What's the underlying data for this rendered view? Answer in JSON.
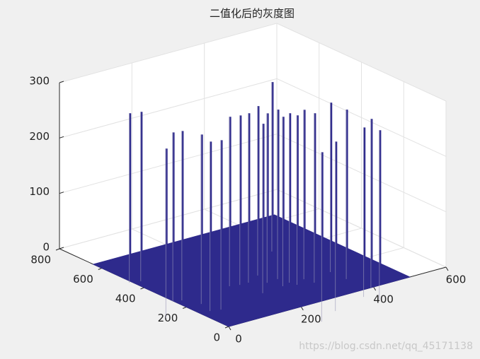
{
  "chart_data": {
    "type": "mesh3d",
    "title": "二值化后的灰度图",
    "xlim": [
      0,
      600
    ],
    "xticks": [
      0,
      200,
      400,
      600
    ],
    "ylim": [
      0,
      800
    ],
    "yticks": [
      0,
      200,
      400,
      600,
      800
    ],
    "zlim": [
      0,
      300
    ],
    "zticks": [
      0,
      100,
      200,
      300
    ],
    "grid": true,
    "color": "#2e2a8c",
    "floor": {
      "x": [
        0,
        500
      ],
      "y": [
        0,
        640
      ],
      "z": 0
    },
    "spikes": {
      "x": [
        101,
        126,
        31,
        104,
        125,
        145,
        134,
        158,
        261,
        284,
        307,
        350,
        292,
        339,
        465,
        371,
        353,
        378,
        383,
        416,
        421,
        287,
        489,
        351,
        490,
        453,
        498,
        470
      ],
      "y": [
        639,
        628,
        347,
        439,
        432,
        375,
        314,
        304,
        440,
        430,
        429,
        459,
        336,
        396,
        589,
        401,
        346,
        357,
        330,
        354,
        313,
        49,
        353,
        93,
        280,
        134,
        177,
        89
      ],
      "z": [
        255,
        255,
        255,
        255,
        255,
        255,
        255,
        255,
        255,
        255,
        255,
        255,
        255,
        255,
        255,
        255,
        255,
        255,
        255,
        255,
        255,
        255,
        255,
        255,
        255,
        255,
        255,
        255
      ]
    },
    "watermark": "https://blog.csdn.net/qq_45171138"
  }
}
